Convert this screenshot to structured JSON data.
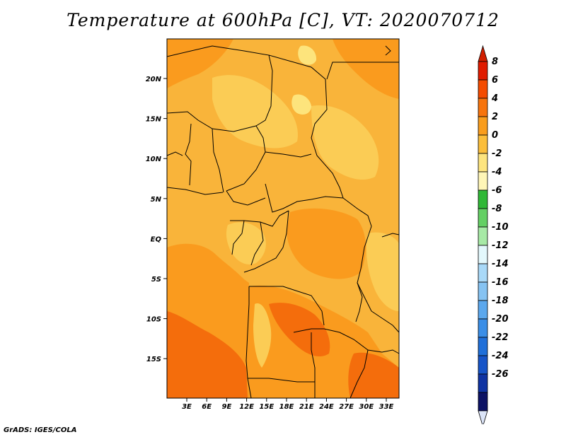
{
  "title": "Temperature at 600hPa [C], VT: 2020070712",
  "credit": "GrADS: IGES/COLA",
  "map": {
    "lon_labels": [
      "3E",
      "6E",
      "9E",
      "12E",
      "15E",
      "18E",
      "21E",
      "24E",
      "27E",
      "30E",
      "33E"
    ],
    "lat_labels": [
      "20N",
      "15N",
      "10N",
      "5N",
      "EQ",
      "5S",
      "10S",
      "15S"
    ],
    "colors": {
      "field_warm": "#f9b43a",
      "field_hot": "#fa9b1e",
      "field_hotter": "#f46d0c",
      "field_cool": "#fbcc55",
      "field_coolest": "#fde47c",
      "border": "#000000"
    }
  },
  "colorbar": {
    "labels": [
      "8",
      "6",
      "4",
      "2",
      "0",
      "-2",
      "-4",
      "-6",
      "-8",
      "-10",
      "-12",
      "-14",
      "-16",
      "-18",
      "-20",
      "-22",
      "-24",
      "-26"
    ],
    "colors": [
      "#e01b00",
      "#f44b00",
      "#f7740d",
      "#f99d1d",
      "#fbbe3b",
      "#fde47e",
      "#fff6b7",
      "#2fb836",
      "#64d064",
      "#a7eaa6",
      "#e3f8fc",
      "#a9d9f8",
      "#86c3f2",
      "#5ba8ee",
      "#3a8ee7",
      "#1f6fd9",
      "#1654c8",
      "#0f33a2",
      "#0c1264"
    ],
    "top_arrow_color": "#d11f00",
    "bottom_arrow_color": "#dbe4f8"
  }
}
